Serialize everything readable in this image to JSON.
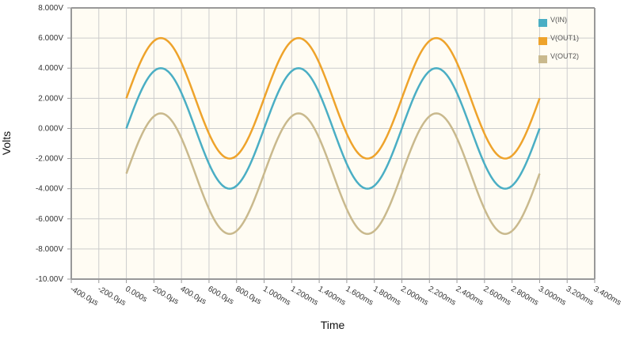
{
  "chart_data": {
    "type": "line",
    "title": "",
    "xlabel": "Time",
    "ylabel": "Volts",
    "xlim_ms": [
      -0.4,
      3.4
    ],
    "ylim": [
      -10,
      8
    ],
    "grid": true,
    "legend_position": "top-right-inside",
    "x_tick_labels": [
      "-400.0µs",
      "-200.0µs",
      "0.000s",
      "200.0µs",
      "400.0µs",
      "600.0µs",
      "800.0µs",
      "1.000ms",
      "1.200ms",
      "1.400ms",
      "1.600ms",
      "1.800ms",
      "2.000ms",
      "2.200ms",
      "2.400ms",
      "2.600ms",
      "2.800ms",
      "3.000ms",
      "3.200ms",
      "3.400ms"
    ],
    "x_tick_values_ms": [
      -0.4,
      -0.2,
      0,
      0.2,
      0.4,
      0.6,
      0.8,
      1.0,
      1.2,
      1.4,
      1.6,
      1.8,
      2.0,
      2.2,
      2.4,
      2.6,
      2.8,
      3.0,
      3.2,
      3.4
    ],
    "y_tick_labels": [
      "8.000V",
      "6.000V",
      "4.000V",
      "2.000V",
      "0.000V",
      "-2.000V",
      "-4.000V",
      "-6.000V",
      "-8.000V",
      "-10.00V"
    ],
    "y_tick_values": [
      8,
      6,
      4,
      2,
      0,
      -2,
      -4,
      -6,
      -8,
      -10
    ],
    "series": [
      {
        "name": "V(IN)",
        "color": "#4aaec4",
        "waveform": "sine",
        "amplitude": 4,
        "offset": 0,
        "frequency_khz": 1,
        "t_start_ms": 0,
        "t_end_ms": 3,
        "x": [
          0,
          0.25,
          0.5,
          0.75,
          1.0,
          1.25,
          1.5,
          1.75,
          2.0,
          2.25,
          2.5,
          2.75,
          3.0
        ],
        "values": [
          0,
          4,
          0,
          -4,
          0,
          4,
          0,
          -4,
          0,
          4,
          0,
          -4,
          0
        ]
      },
      {
        "name": "V(OUT1)",
        "color": "#eea32b",
        "waveform": "sine",
        "amplitude": 4,
        "offset": 2,
        "frequency_khz": 1,
        "t_start_ms": 0,
        "t_end_ms": 3,
        "x": [
          0,
          0.25,
          0.5,
          0.75,
          1.0,
          1.25,
          1.5,
          1.75,
          2.0,
          2.25,
          2.5,
          2.75,
          3.0
        ],
        "values": [
          2,
          6,
          2,
          -2,
          2,
          6,
          2,
          -2,
          2,
          6,
          2,
          -2,
          2
        ]
      },
      {
        "name": "V(OUT2)",
        "color": "#c9b98d",
        "waveform": "sine",
        "amplitude": 4,
        "offset": -3,
        "frequency_khz": 1,
        "t_start_ms": 0,
        "t_end_ms": 3,
        "x": [
          0,
          0.25,
          0.5,
          0.75,
          1.0,
          1.25,
          1.5,
          1.75,
          2.0,
          2.25,
          2.5,
          2.75,
          3.0
        ],
        "values": [
          -3,
          1,
          -3,
          -7,
          -3,
          1,
          -3,
          -7,
          -3,
          1,
          -3,
          -7,
          -3
        ]
      }
    ]
  },
  "colors": {
    "plot_background": "#fffcf3",
    "grid": "#cccccc",
    "axis": "#999999"
  }
}
